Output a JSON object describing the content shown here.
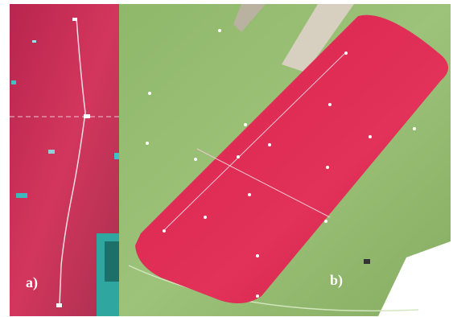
{
  "panels": [
    {
      "label": "a)"
    },
    {
      "label": "b)"
    }
  ]
}
